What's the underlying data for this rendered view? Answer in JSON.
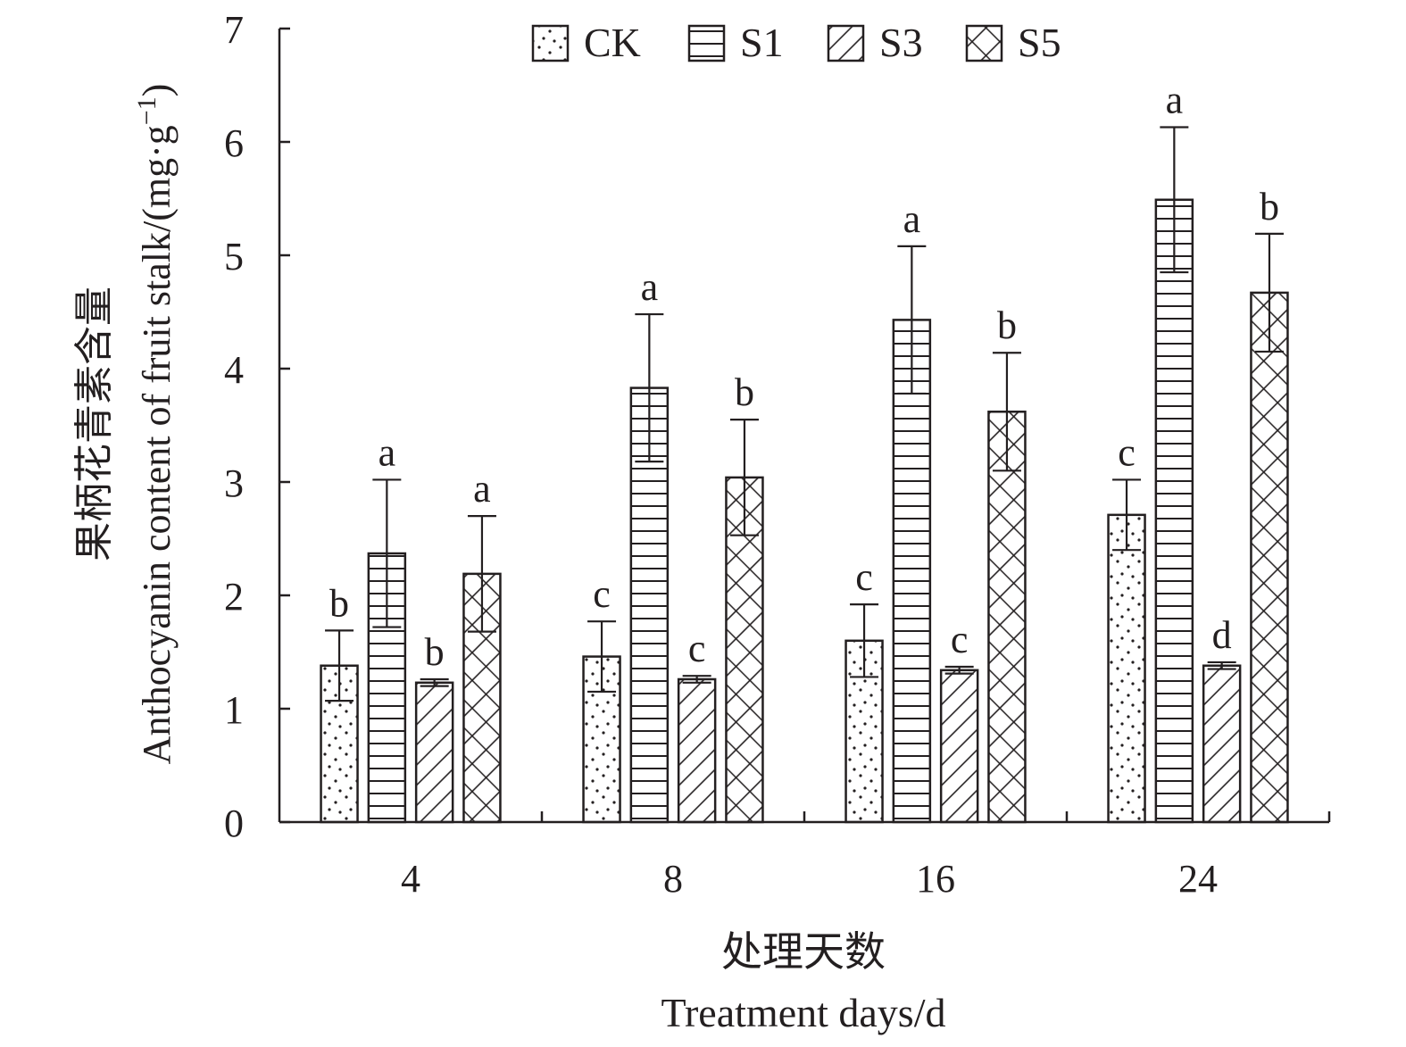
{
  "chart_data": {
    "type": "bar",
    "x_title_cn": "处理天数",
    "x_title_en": "Treatment days/d",
    "y_title_cn": "果柄花青素含量",
    "y_title_en_main": "Anthocyanin content of fruit stalk/(mg·g",
    "y_title_en_sup": "−1",
    "y_title_en_close": ")",
    "categories": [
      "4",
      "8",
      "16",
      "24"
    ],
    "ylim": [
      0,
      7
    ],
    "yticks": [
      "0",
      "1",
      "2",
      "3",
      "4",
      "5",
      "6",
      "7"
    ],
    "legend_position": "top-center",
    "series": [
      {
        "name": "CK",
        "pattern": "dots",
        "values": [
          1.38,
          1.46,
          1.6,
          2.71
        ],
        "errors": [
          0.31,
          0.31,
          0.32,
          0.31
        ],
        "letters": [
          "b",
          "c",
          "c",
          "c"
        ]
      },
      {
        "name": "S1",
        "pattern": "horizontal",
        "values": [
          2.37,
          3.83,
          4.43,
          5.49
        ],
        "errors": [
          0.65,
          0.65,
          0.65,
          0.64
        ],
        "letters": [
          "a",
          "a",
          "a",
          "a"
        ]
      },
      {
        "name": "S3",
        "pattern": "diagonal",
        "values": [
          1.23,
          1.26,
          1.34,
          1.38
        ],
        "errors": [
          0.03,
          0.03,
          0.03,
          0.03
        ],
        "letters": [
          "b",
          "c",
          "c",
          "d"
        ]
      },
      {
        "name": "S5",
        "pattern": "crosshatch",
        "values": [
          2.19,
          3.04,
          3.62,
          4.67
        ],
        "errors": [
          0.51,
          0.51,
          0.52,
          0.52
        ],
        "letters": [
          "a",
          "b",
          "b",
          "b"
        ]
      }
    ]
  }
}
